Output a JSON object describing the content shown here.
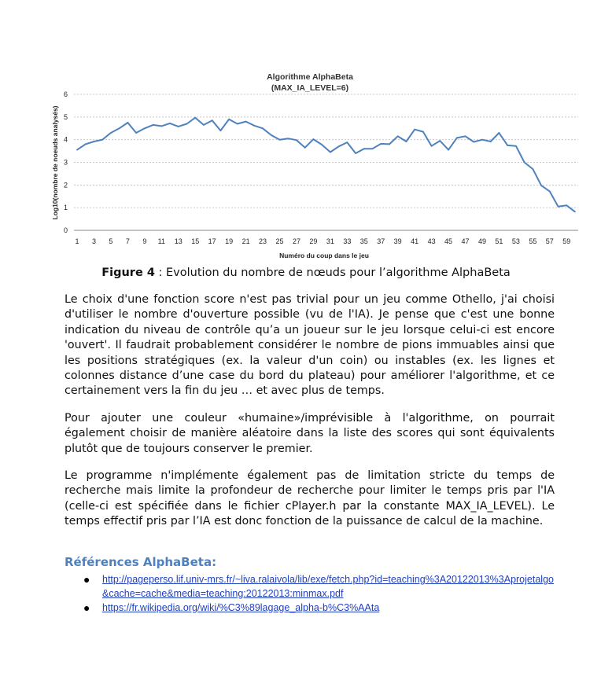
{
  "chart_data": {
    "type": "line",
    "title": "Algorithme AlphaBeta",
    "subtitle": "(MAX_IA_LEVEL=6)",
    "xlabel": "Numéro du coup dans le jeu",
    "ylabel": "Log10(nombre de noeuds analysés)",
    "ylim": [
      0,
      6
    ],
    "yticks": [
      0,
      1,
      2,
      3,
      4,
      5,
      6
    ],
    "xtick_labels": [
      "1",
      "3",
      "5",
      "7",
      "9",
      "11",
      "13",
      "15",
      "17",
      "19",
      "21",
      "23",
      "25",
      "27",
      "29",
      "31",
      "33",
      "35",
      "37",
      "39",
      "41",
      "43",
      "45",
      "47",
      "49",
      "51",
      "53",
      "55",
      "57",
      "59"
    ],
    "grid": "horizontal",
    "series": [
      {
        "color": "#4f81bd",
        "x": [
          1,
          2,
          3,
          4,
          5,
          6,
          7,
          8,
          9,
          10,
          11,
          12,
          13,
          14,
          15,
          16,
          17,
          18,
          19,
          20,
          21,
          22,
          23,
          24,
          25,
          26,
          27,
          28,
          29,
          30,
          31,
          32,
          33,
          34,
          35,
          36,
          37,
          38,
          39,
          40,
          41,
          42,
          43,
          44,
          45,
          46,
          47,
          48,
          49,
          50,
          51,
          52,
          53,
          54,
          55,
          56,
          57,
          58,
          59,
          60
        ],
        "values": [
          3.55,
          3.8,
          3.92,
          4.0,
          4.3,
          4.5,
          4.75,
          4.3,
          4.5,
          4.65,
          4.6,
          4.72,
          4.58,
          4.7,
          4.97,
          4.65,
          4.85,
          4.4,
          4.9,
          4.7,
          4.8,
          4.62,
          4.5,
          4.2,
          4.0,
          4.05,
          3.98,
          3.65,
          4.02,
          3.78,
          3.45,
          3.7,
          3.88,
          3.4,
          3.6,
          3.6,
          3.82,
          3.8,
          4.15,
          3.92,
          4.45,
          4.35,
          3.72,
          3.95,
          3.55,
          4.08,
          4.15,
          3.9,
          4.0,
          3.92,
          4.3,
          3.75,
          3.72,
          3.0,
          2.7,
          1.98,
          1.72,
          1.05,
          1.1,
          0.82
        ]
      }
    ]
  },
  "caption": {
    "label": "Figure 4",
    "text": " : Evolution du nombre de nœuds pour l’algorithme AlphaBeta"
  },
  "paragraphs": {
    "p1": "Le choix d'une fonction score n'est pas trivial pour un jeu comme Othello, j'ai choisi d'utiliser le nombre d'ouverture possible (vu de l'IA). Je pense que c'est une bonne indication du niveau de contrôle qu’a un joueur sur le jeu lorsque celui-ci est encore 'ouvert'. Il faudrait probablement considérer le nombre de pions immuables ainsi que les positions stratégiques (ex. la valeur d'un coin) ou instables (ex. les lignes et colonnes distance d’une case du bord du plateau) pour améliorer l'algorithme, et ce certainement vers la fin du jeu … et avec plus de temps.",
    "p2": "Pour ajouter une couleur «humaine»/imprévisible à l'algorithme, on pourrait également choisir de manière aléatoire dans la liste des scores qui sont équivalents plutôt que de toujours conserver le premier.",
    "p3": "Le programme n'implémente également pas de limitation stricte du temps de recherche mais limite la profondeur de recherche pour limiter le temps pris par l'IA (celle-ci est spécifiée dans le fichier cPlayer.h par la constante MAX_IA_LEVEL). Le temps effectif pris par l’IA est donc fonction de la puissance de calcul de la machine."
  },
  "references": {
    "heading": "Références AlphaBeta:",
    "links": [
      "http://pageperso.lif.univ-mrs.fr/~liva.ralaivola/lib/exe/fetch.php?id=teaching%3A20122013%3Aprojetalgo&cache=cache&media=teaching:20122013:minmax.pdf",
      "https://fr.wikipedia.org/wiki/%C3%89lagage_alpha-b%C3%AAta"
    ],
    "bullet": "●"
  }
}
